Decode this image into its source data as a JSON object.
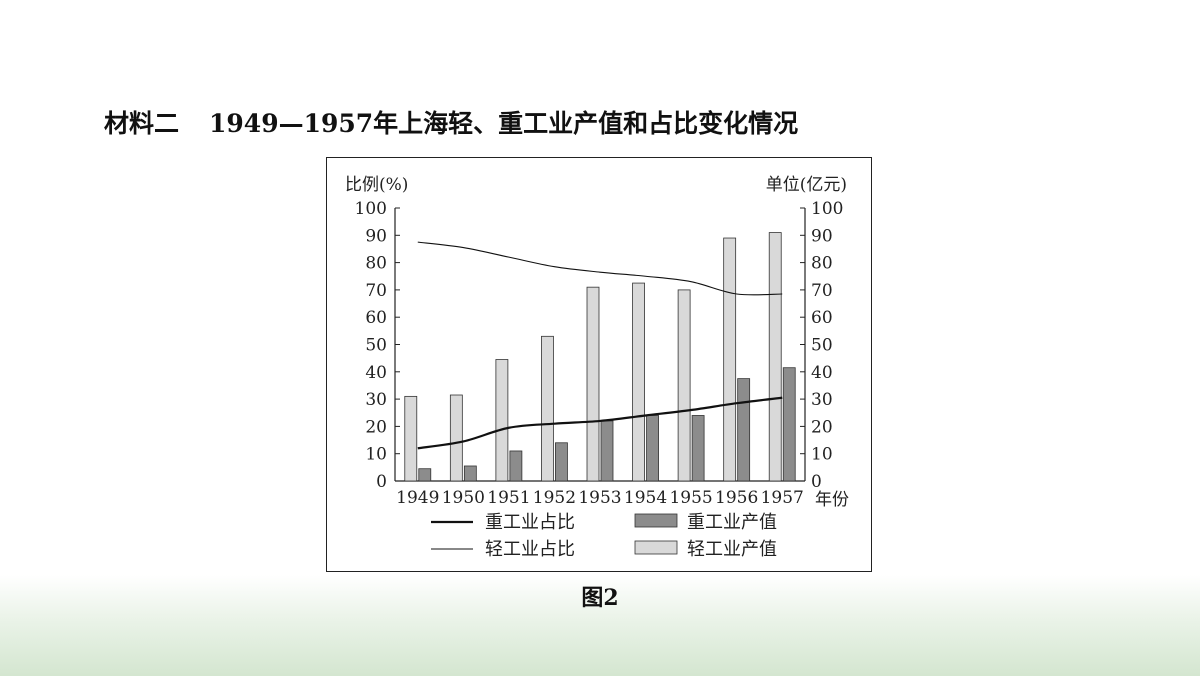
{
  "heading": {
    "label": "材料二",
    "title": "1949—1957年上海轻、重工业产值和占比变化情况"
  },
  "figure_caption": "图2",
  "chart_data": {
    "type": "bar",
    "categories": [
      "1949",
      "1950",
      "1951",
      "1952",
      "1953",
      "1954",
      "1955",
      "1956",
      "1957"
    ],
    "xlabel": "年份",
    "ylabel_left": "比例(%)",
    "ylabel_right": "单位(亿元)",
    "ylim": [
      0,
      100
    ],
    "yticks": [
      0,
      10,
      20,
      30,
      40,
      50,
      60,
      70,
      80,
      90,
      100
    ],
    "grid": false,
    "legend_position": "bottom",
    "series": [
      {
        "name": "轻工业产值",
        "kind": "bar",
        "axis": "right",
        "color": "#d9d9d9",
        "values": [
          31,
          31.5,
          44.5,
          53,
          71,
          72.5,
          70,
          89,
          91
        ]
      },
      {
        "name": "重工业产值",
        "kind": "bar",
        "axis": "right",
        "color": "#8c8c8c",
        "values": [
          4.5,
          5.5,
          11,
          14,
          22,
          24,
          24,
          37.5,
          41.5
        ]
      },
      {
        "name": "重工业占比",
        "kind": "line",
        "axis": "left",
        "color": "#111111",
        "weight": "thick",
        "values": [
          12,
          14.5,
          19.5,
          21,
          22,
          24,
          26,
          28.5,
          30.5
        ]
      },
      {
        "name": "轻工业占比",
        "kind": "line",
        "axis": "left",
        "color": "#111111",
        "weight": "thin",
        "values": [
          87.5,
          85.5,
          82,
          78.5,
          76.5,
          75,
          73,
          68.5,
          68.5
        ]
      }
    ],
    "legend": [
      {
        "label": "重工业占比",
        "type": "thick-line"
      },
      {
        "label": "重工业产值",
        "type": "dark-bar"
      },
      {
        "label": "轻工业占比",
        "type": "thin-line"
      },
      {
        "label": "轻工业产值",
        "type": "light-bar"
      }
    ]
  }
}
